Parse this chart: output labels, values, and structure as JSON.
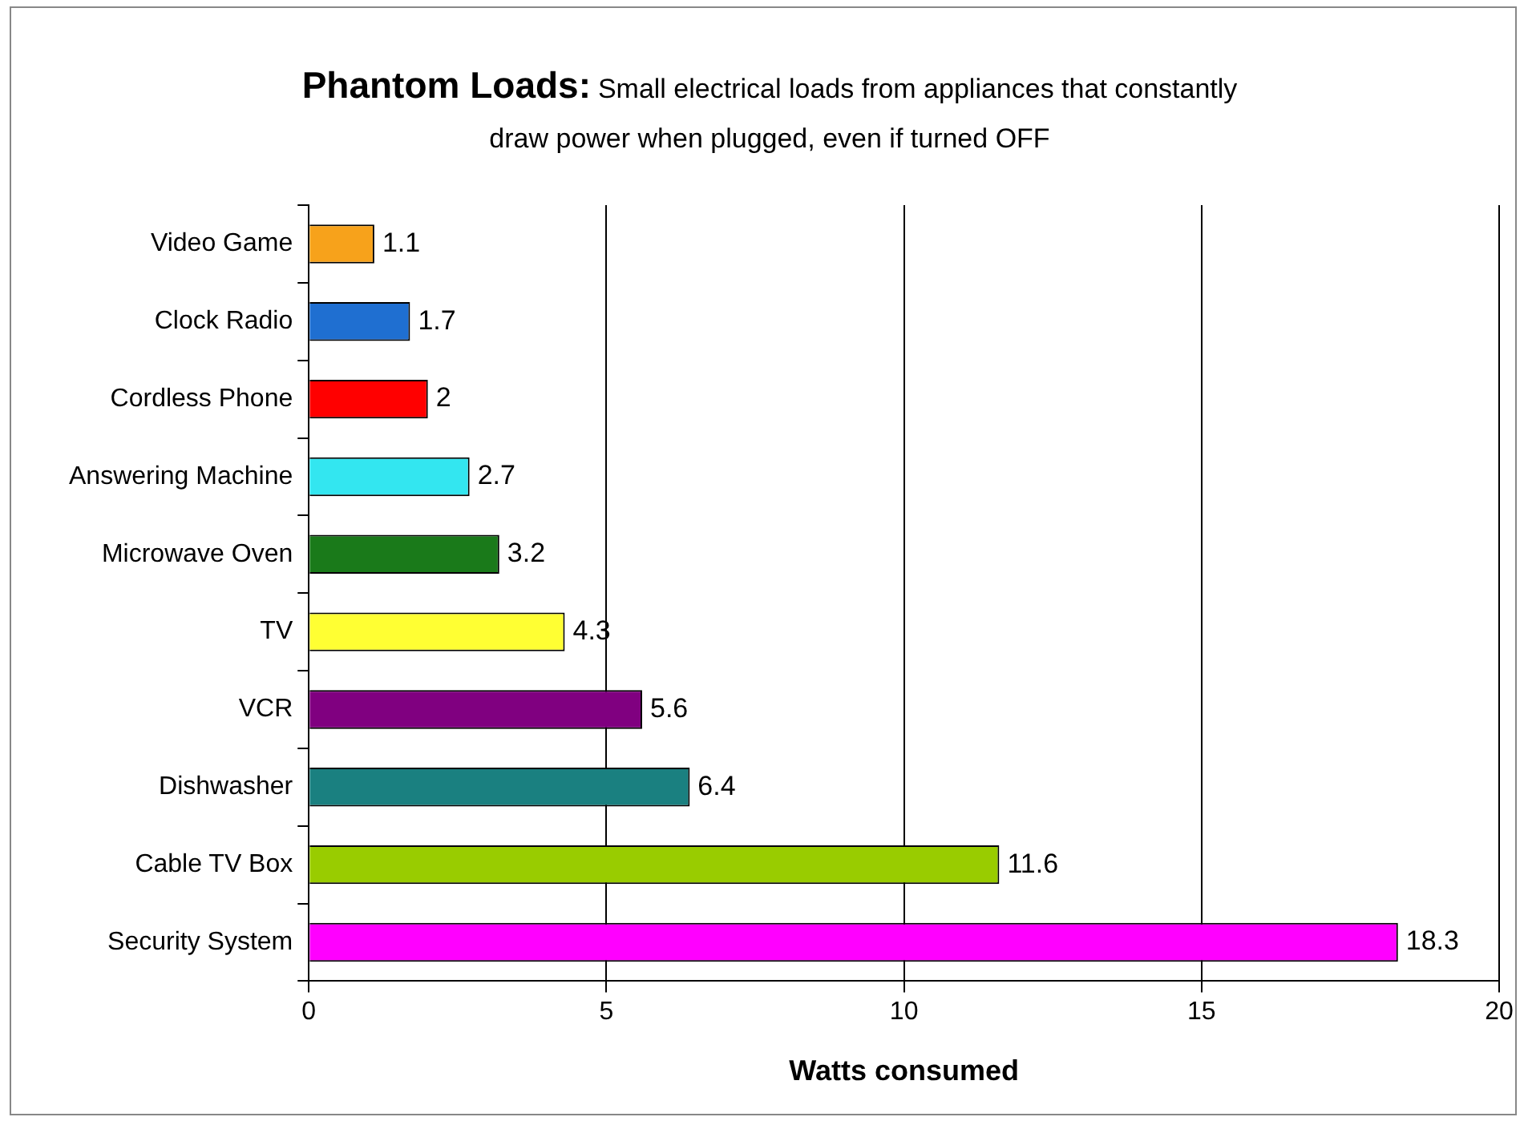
{
  "chart_data": {
    "type": "bar",
    "orientation": "horizontal",
    "title": "Phantom Loads:",
    "subtitle": "Small electrical loads from appliances that constantly draw power when plugged, even if turned OFF",
    "xlabel": "Watts consumed",
    "categories": [
      "Video Game",
      "Clock Radio",
      "Cordless Phone",
      "Answering Machine",
      "Microwave Oven",
      "TV",
      "VCR",
      "Dishwasher",
      "Cable TV Box",
      "Security System"
    ],
    "values": [
      1.1,
      1.7,
      2,
      2.7,
      3.2,
      4.3,
      5.6,
      6.4,
      11.6,
      18.3
    ],
    "colors": [
      "#f7a21b",
      "#1f6fd1",
      "#ff0000",
      "#33e6f0",
      "#1a7a1a",
      "#ffff33",
      "#800080",
      "#1a8080",
      "#99cc00",
      "#ff00ff"
    ],
    "xlim": [
      0,
      20
    ],
    "xticks": [
      0,
      5,
      10,
      15,
      20
    ],
    "grid": "x",
    "data_labels": true,
    "legend": false
  }
}
